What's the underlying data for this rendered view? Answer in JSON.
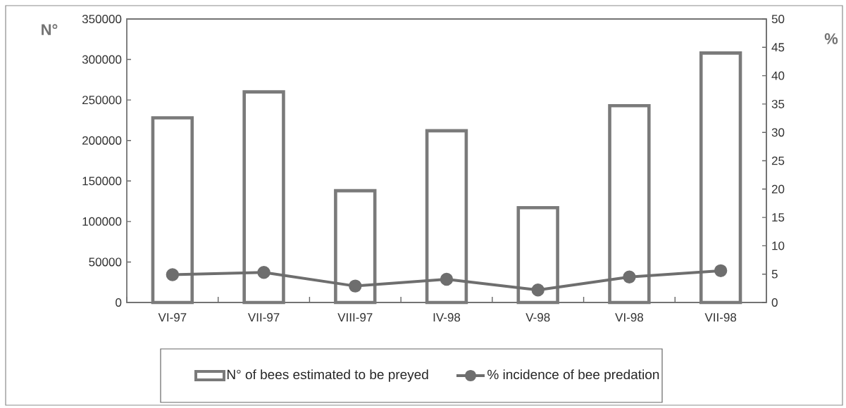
{
  "chart_data": {
    "type": "bar",
    "ylabel": "N°",
    "y2label": "%",
    "categories": [
      "VI-97",
      "VII-97",
      "VIII-97",
      "IV-98",
      "V-98",
      "VI-98",
      "VII-98"
    ],
    "series": [
      {
        "name": "N° of bees estimated to be preyed",
        "color": "#7a7a7a",
        "values": [
          228000,
          260000,
          138000,
          212000,
          117000,
          243000,
          308000
        ]
      },
      {
        "name": "% incidence of bee predation",
        "type": "line",
        "axis": "y2",
        "color": "#6e6e6e",
        "values": [
          4.9,
          5.3,
          2.9,
          4.1,
          2.2,
          4.5,
          5.6
        ]
      }
    ],
    "ylim": [
      0,
      350000
    ],
    "yticks": [
      0,
      50000,
      100000,
      150000,
      200000,
      250000,
      300000,
      350000
    ],
    "y2lim": [
      0,
      50
    ],
    "y2ticks": [
      0,
      5,
      10,
      15,
      20,
      25,
      30,
      35,
      40,
      45,
      50
    ],
    "legend": "bottom",
    "marker": "circle",
    "line_style": "solid"
  }
}
